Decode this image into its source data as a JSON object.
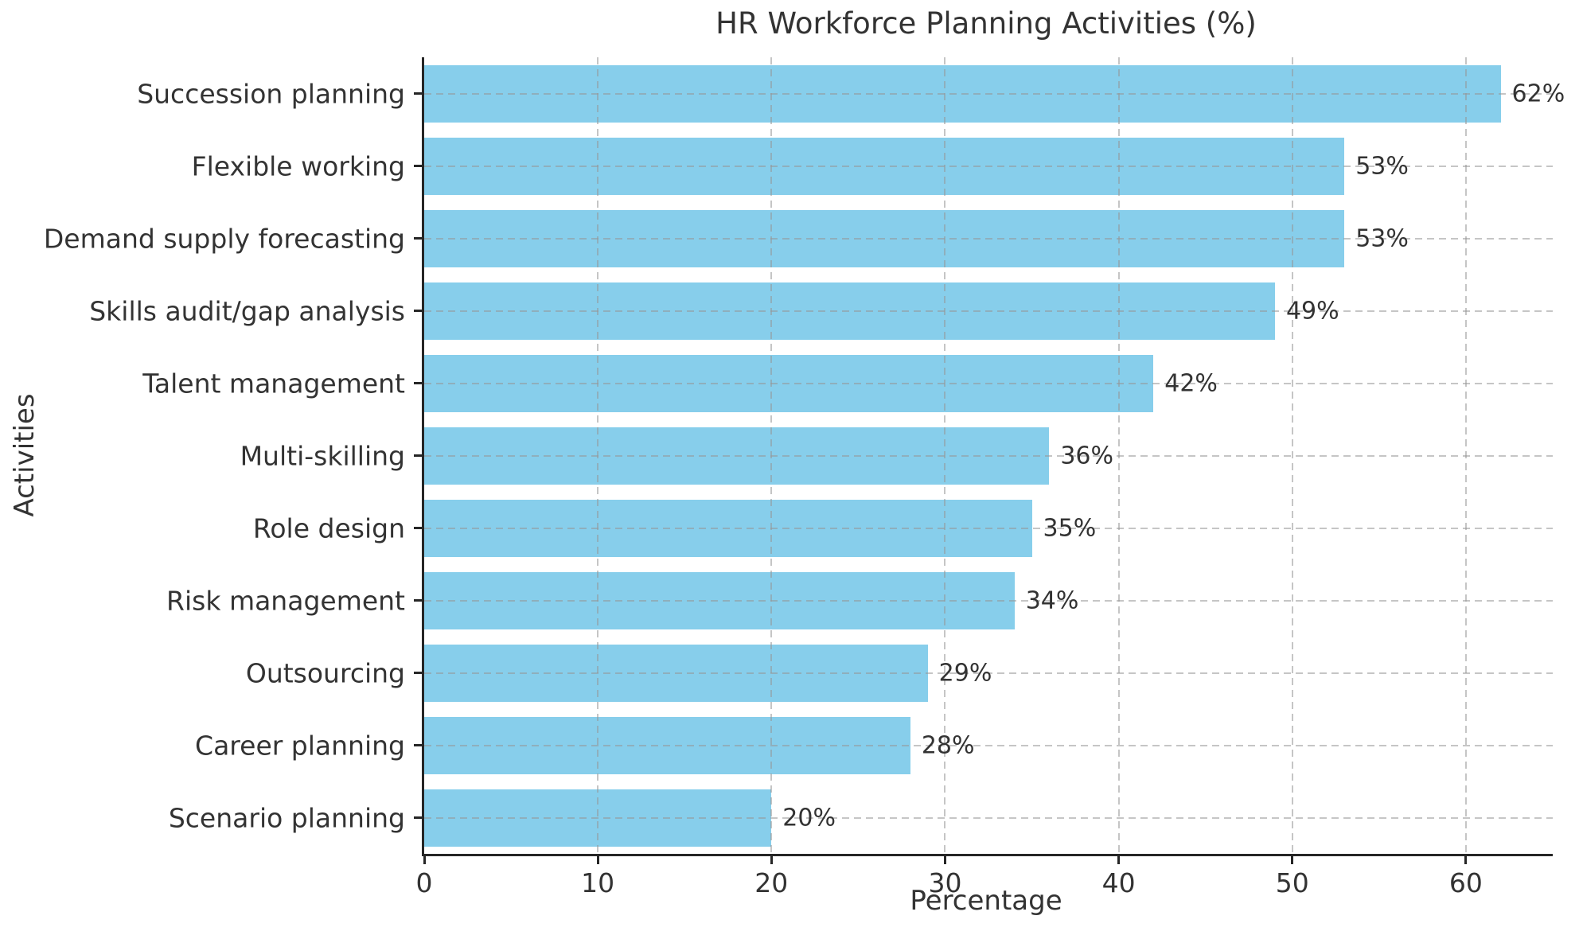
{
  "chart_data": {
    "type": "bar",
    "orientation": "horizontal",
    "title": "HR Workforce Planning Activities (%)",
    "xlabel": "Percentage",
    "ylabel": "Activities",
    "categories": [
      "Succession planning",
      "Flexible working",
      "Demand supply forecasting",
      "Skills audit/gap analysis",
      "Talent management",
      "Multi-skilling",
      "Role design",
      "Risk management",
      "Outsourcing",
      "Career planning",
      "Scenario planning"
    ],
    "values": [
      62,
      53,
      53,
      49,
      42,
      36,
      35,
      34,
      29,
      28,
      20
    ],
    "value_labels": [
      "62%",
      "53%",
      "53%",
      "49%",
      "42%",
      "36%",
      "35%",
      "34%",
      "29%",
      "28%",
      "20%"
    ],
    "xlim": [
      0,
      65
    ],
    "xticks": [
      0,
      10,
      20,
      30,
      40,
      50,
      60
    ],
    "xtick_labels": [
      "0",
      "10",
      "20",
      "30",
      "40",
      "50",
      "60"
    ],
    "grid": "dashed, both axes, drawn above bars",
    "legend": "none",
    "colors": {
      "bar": "#87CEEB",
      "text": "#333333",
      "grid": "#c8c8c8",
      "spine": "#262626",
      "background": "#ffffff"
    }
  }
}
